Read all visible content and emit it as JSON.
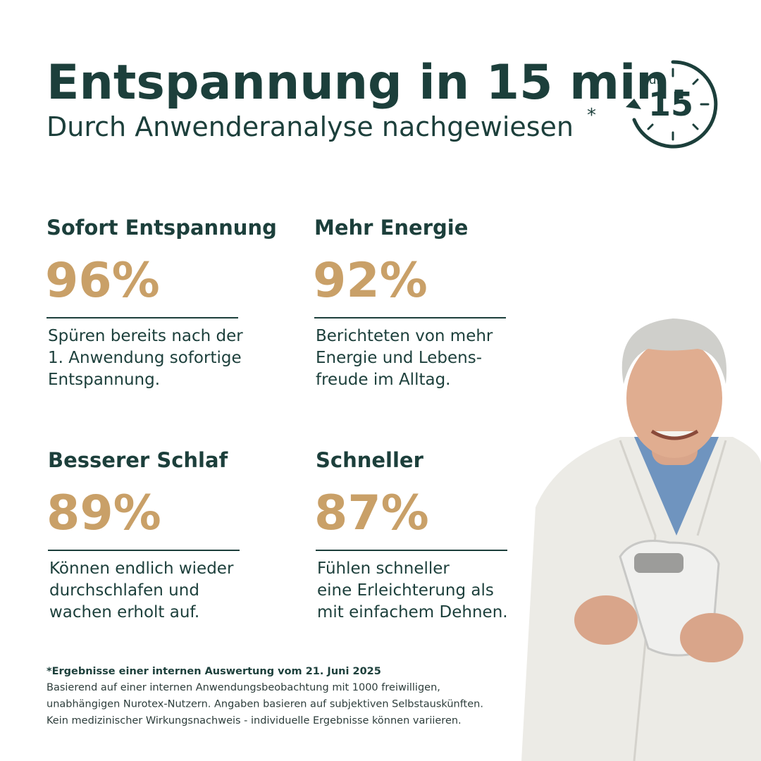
{
  "header": {
    "title": "Entspannung in 15 min.",
    "subtitle": "Durch Anwenderanalyse nachgewiesen",
    "footnote_marker": "*"
  },
  "badge": {
    "label": "Nur",
    "number": "15"
  },
  "stats": [
    {
      "heading": "Sofort Entspannung",
      "value": "96%",
      "lines": [
        "Spüren bereits nach der",
        "1. Anwendung sofortige",
        "Entspannung."
      ]
    },
    {
      "heading": "Mehr Energie",
      "value": "92%",
      "lines": [
        "Berichteten von mehr",
        "Energie und Lebens-",
        "freude im Alltag."
      ]
    },
    {
      "heading": "Besserer Schlaf",
      "value": "89%",
      "lines": [
        "Können endlich wieder",
        "durchschlafen und",
        "wachen erholt auf."
      ]
    },
    {
      "heading": "Schneller",
      "value": "87%",
      "lines": [
        "Fühlen schneller",
        "eine Erleichterung als",
        "mit einfachem Dehnen."
      ]
    }
  ],
  "footnote": {
    "title": "*Ergebnisse einer internen Auswertung vom 21. Juni 2025",
    "lines": [
      "Basierend auf einer internen Anwendungsbeobachtung mit 1000 freiwilligen,",
      "unabhängigen Nurotex-Nutzern. Angaben basieren auf subjektiven Selbstauskünften.",
      "Kein medizinischer Wirkungsnachweis - individuelle Ergebnisse können variieren."
    ]
  }
}
